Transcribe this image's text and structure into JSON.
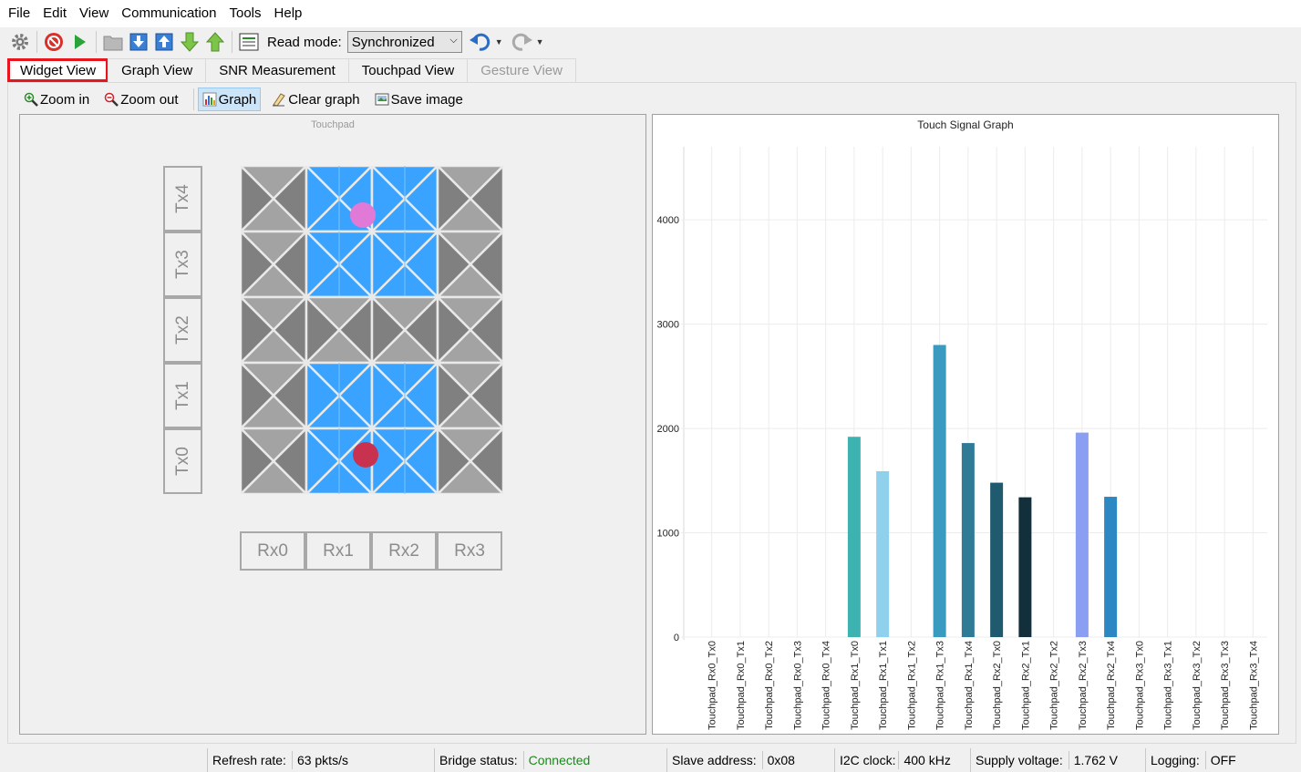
{
  "menu": [
    "File",
    "Edit",
    "View",
    "Communication",
    "Tools",
    "Help"
  ],
  "toolbar": {
    "read_mode_label": "Read mode:",
    "read_mode_value": "Synchronized"
  },
  "tabs": [
    {
      "label": "Widget View",
      "state": "active"
    },
    {
      "label": "Graph View",
      "state": "normal"
    },
    {
      "label": "SNR Measurement",
      "state": "normal"
    },
    {
      "label": "Touchpad View",
      "state": "normal"
    },
    {
      "label": "Gesture View",
      "state": "disabled"
    }
  ],
  "viewbar": {
    "zoom_in": "Zoom in",
    "zoom_out": "Zoom out",
    "graph": "Graph",
    "clear_graph": "Clear graph",
    "save_image": "Save image"
  },
  "touchpad": {
    "title": "Touchpad",
    "tx": [
      "Tx4",
      "Tx3",
      "Tx2",
      "Tx1",
      "Tx0"
    ],
    "rx": [
      "Rx0",
      "Rx1",
      "Rx2",
      "Rx3"
    ],
    "active_rx": [
      "Rx1",
      "Rx2"
    ],
    "active_tx": [
      "Tx4",
      "Tx3",
      "Tx1",
      "Tx0"
    ],
    "colors": {
      "active": "#3aa3ff",
      "dark": "#808080",
      "light": "#a3a3a3",
      "touch1": "#e07ad6",
      "touch2": "#c8324e"
    }
  },
  "chart_data": {
    "type": "bar",
    "title": "Touch Signal Graph",
    "categories": [
      "Touchpad_Rx0_Tx0",
      "Touchpad_Rx0_Tx1",
      "Touchpad_Rx0_Tx2",
      "Touchpad_Rx0_Tx3",
      "Touchpad_Rx0_Tx4",
      "Touchpad_Rx1_Tx0",
      "Touchpad_Rx1_Tx1",
      "Touchpad_Rx1_Tx2",
      "Touchpad_Rx1_Tx3",
      "Touchpad_Rx1_Tx4",
      "Touchpad_Rx2_Tx0",
      "Touchpad_Rx2_Tx1",
      "Touchpad_Rx2_Tx2",
      "Touchpad_Rx2_Tx3",
      "Touchpad_Rx2_Tx4",
      "Touchpad_Rx3_Tx0",
      "Touchpad_Rx3_Tx1",
      "Touchpad_Rx3_Tx2",
      "Touchpad_Rx3_Tx3",
      "Touchpad_Rx3_Tx4"
    ],
    "values": [
      0,
      0,
      0,
      0,
      0,
      1920,
      1590,
      0,
      2800,
      1860,
      1480,
      1340,
      0,
      1960,
      1345,
      0,
      0,
      0,
      0,
      0
    ],
    "colors": [
      "#ffffff",
      "#ffffff",
      "#ffffff",
      "#ffffff",
      "#ffffff",
      "#3cb3b0",
      "#8fd0ec",
      "#ffffff",
      "#3a9bc1",
      "#2f7b95",
      "#1f5a6e",
      "#142f3c",
      "#ffffff",
      "#8a9ef2",
      "#2d87c2",
      "#ffffff",
      "#ffffff",
      "#ffffff",
      "#ffffff",
      "#ffffff"
    ],
    "yticks": [
      0,
      1000,
      2000,
      3000,
      4000
    ],
    "ylim": [
      0,
      4700
    ],
    "grid": true
  },
  "status": {
    "refresh_label": "Refresh rate:",
    "refresh_value": "63 pkts/s",
    "bridge_label": "Bridge status:",
    "bridge_value": "Connected",
    "slave_label": "Slave address:",
    "slave_value": "0x08",
    "i2c_label": "I2C clock:",
    "i2c_value": "400 kHz",
    "supply_label": "Supply voltage:",
    "supply_value": "1.762 V",
    "logging_label": "Logging:",
    "logging_value": "OFF"
  }
}
